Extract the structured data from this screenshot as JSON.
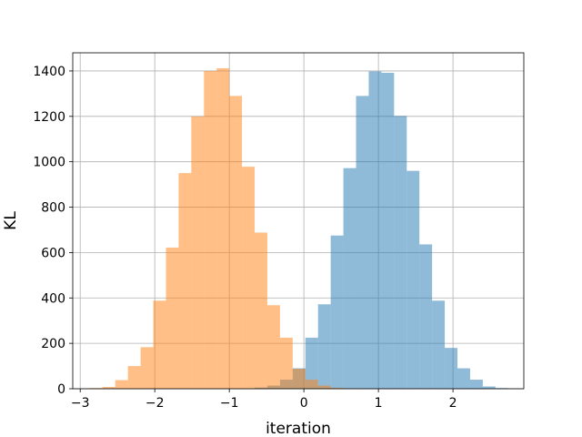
{
  "chart_data": {
    "type": "bar",
    "title": "",
    "xlabel": "iteration",
    "ylabel": "KL",
    "xlim": [
      -3.1,
      2.95
    ],
    "ylim": [
      0,
      1480
    ],
    "xticks": [
      -3,
      -2,
      -1,
      0,
      1,
      2
    ],
    "yticks": [
      0,
      200,
      400,
      600,
      800,
      1000,
      1200,
      1400
    ],
    "grid": true,
    "histogram": true,
    "series": [
      {
        "color": "#1f77b4",
        "alpha": 0.5,
        "bins": [
          {
            "x0": -0.83,
            "x1": -0.66,
            "value": 2
          },
          {
            "x0": -0.66,
            "x1": -0.49,
            "value": 5
          },
          {
            "x0": -0.49,
            "x1": -0.32,
            "value": 14
          },
          {
            "x0": -0.32,
            "x1": -0.15,
            "value": 40
          },
          {
            "x0": -0.15,
            "x1": 0.02,
            "value": 90
          },
          {
            "x0": 0.02,
            "x1": 0.19,
            "value": 225
          },
          {
            "x0": 0.19,
            "x1": 0.36,
            "value": 372
          },
          {
            "x0": 0.36,
            "x1": 0.53,
            "value": 675
          },
          {
            "x0": 0.53,
            "x1": 0.7,
            "value": 972
          },
          {
            "x0": 0.7,
            "x1": 0.87,
            "value": 1290
          },
          {
            "x0": 0.87,
            "x1": 1.04,
            "value": 1398
          },
          {
            "x0": 1.04,
            "x1": 1.21,
            "value": 1392
          },
          {
            "x0": 1.21,
            "x1": 1.38,
            "value": 1202
          },
          {
            "x0": 1.38,
            "x1": 1.55,
            "value": 960
          },
          {
            "x0": 1.55,
            "x1": 1.72,
            "value": 636
          },
          {
            "x0": 1.72,
            "x1": 1.89,
            "value": 388
          },
          {
            "x0": 1.89,
            "x1": 2.06,
            "value": 180
          },
          {
            "x0": 2.06,
            "x1": 2.23,
            "value": 90
          },
          {
            "x0": 2.23,
            "x1": 2.4,
            "value": 40
          },
          {
            "x0": 2.4,
            "x1": 2.57,
            "value": 10
          },
          {
            "x0": 2.57,
            "x1": 2.74,
            "value": 3
          }
        ]
      },
      {
        "color": "#ff7f0e",
        "alpha": 0.5,
        "bins": [
          {
            "x0": -2.87,
            "x1": -2.7,
            "value": 3
          },
          {
            "x0": -2.7,
            "x1": -2.53,
            "value": 8
          },
          {
            "x0": -2.53,
            "x1": -2.36,
            "value": 38
          },
          {
            "x0": -2.36,
            "x1": -2.19,
            "value": 100
          },
          {
            "x0": -2.19,
            "x1": -2.02,
            "value": 183
          },
          {
            "x0": -2.02,
            "x1": -1.85,
            "value": 388
          },
          {
            "x0": -1.85,
            "x1": -1.68,
            "value": 622
          },
          {
            "x0": -1.68,
            "x1": -1.51,
            "value": 950
          },
          {
            "x0": -1.51,
            "x1": -1.34,
            "value": 1200
          },
          {
            "x0": -1.34,
            "x1": -1.17,
            "value": 1400
          },
          {
            "x0": -1.17,
            "x1": -1.0,
            "value": 1412
          },
          {
            "x0": -1.0,
            "x1": -0.83,
            "value": 1290
          },
          {
            "x0": -0.83,
            "x1": -0.66,
            "value": 978
          },
          {
            "x0": -0.66,
            "x1": -0.49,
            "value": 688
          },
          {
            "x0": -0.49,
            "x1": -0.32,
            "value": 368
          },
          {
            "x0": -0.32,
            "x1": -0.15,
            "value": 225
          },
          {
            "x0": -0.15,
            "x1": 0.02,
            "value": 88
          },
          {
            "x0": 0.02,
            "x1": 0.19,
            "value": 40
          },
          {
            "x0": 0.19,
            "x1": 0.36,
            "value": 14
          },
          {
            "x0": 0.36,
            "x1": 0.53,
            "value": 4
          },
          {
            "x0": 0.53,
            "x1": 0.7,
            "value": 1
          }
        ]
      }
    ]
  }
}
